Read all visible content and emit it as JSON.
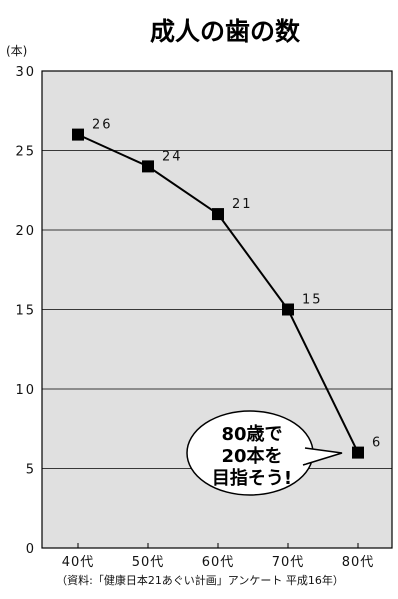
{
  "chart_data": {
    "type": "line",
    "title": "成人の歯の数",
    "y_unit_label": "(本)",
    "categories": [
      "40代",
      "50代",
      "60代",
      "70代",
      "80代"
    ],
    "series": [
      {
        "values": [
          26,
          24,
          21,
          15,
          6
        ]
      }
    ],
    "data_labels": [
      "26",
      "24",
      "21",
      "15",
      "6"
    ],
    "ylim": [
      0,
      30
    ],
    "yticks": [
      0,
      5,
      10,
      15,
      20,
      25,
      30
    ],
    "ytick_labels": [
      "0",
      "5",
      "10",
      "15",
      "20",
      "25",
      "30"
    ],
    "grid": true,
    "annotation": [
      "80歳で",
      "20本を",
      "目指そう!"
    ],
    "source": "（資料:「健康日本21あぐい計画」アンケート 平成16年）"
  },
  "colors": {
    "plot_background": "#e0e0e0",
    "line": "#000000",
    "marker": "#000000",
    "bubble_fill": "#ffffff"
  }
}
